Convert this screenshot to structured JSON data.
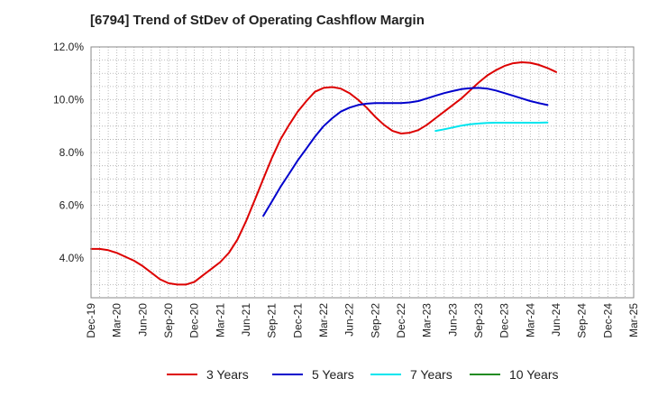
{
  "title": "[6794]  Trend of StDev of Operating Cashflow Margin",
  "chart_data": {
    "type": "line",
    "title": "[6794]  Trend of StDev of Operating Cashflow Margin",
    "xlabel": "",
    "ylabel": "",
    "ylim": [
      2.5,
      12.0
    ],
    "y_ticks": [
      4.0,
      6.0,
      8.0,
      10.0,
      12.0
    ],
    "y_tick_labels": [
      "4.0%",
      "6.0%",
      "8.0%",
      "10.0%",
      "12.0%"
    ],
    "x_tick_labels": [
      "Dec-19",
      "Mar-20",
      "Jun-20",
      "Sep-20",
      "Dec-20",
      "Mar-21",
      "Jun-21",
      "Sep-21",
      "Dec-21",
      "Mar-22",
      "Jun-22",
      "Sep-22",
      "Dec-22",
      "Mar-23",
      "Jun-23",
      "Sep-23",
      "Dec-23",
      "Mar-24",
      "Jun-24",
      "Sep-24",
      "Dec-24",
      "Mar-25"
    ],
    "grid": true,
    "legend_position": "bottom",
    "series": [
      {
        "name": "3 Years",
        "color": "#dd0000",
        "points": [
          [
            0,
            4.35
          ],
          [
            1,
            4.35
          ],
          [
            2,
            4.3
          ],
          [
            3,
            4.2
          ],
          [
            4,
            4.05
          ],
          [
            5,
            3.9
          ],
          [
            6,
            3.7
          ],
          [
            7,
            3.45
          ],
          [
            8,
            3.2
          ],
          [
            9,
            3.05
          ],
          [
            10,
            3.0
          ],
          [
            11,
            3.0
          ],
          [
            12,
            3.1
          ],
          [
            13,
            3.35
          ],
          [
            14,
            3.6
          ],
          [
            15,
            3.85
          ],
          [
            16,
            4.2
          ],
          [
            17,
            4.7
          ],
          [
            18,
            5.4
          ],
          [
            19,
            6.2
          ],
          [
            20,
            7.0
          ],
          [
            21,
            7.8
          ],
          [
            22,
            8.5
          ],
          [
            23,
            9.05
          ],
          [
            24,
            9.55
          ],
          [
            25,
            9.95
          ],
          [
            26,
            10.3
          ],
          [
            27,
            10.45
          ],
          [
            28,
            10.48
          ],
          [
            29,
            10.42
          ],
          [
            30,
            10.25
          ],
          [
            31,
            10.0
          ],
          [
            32,
            9.7
          ],
          [
            33,
            9.35
          ],
          [
            34,
            9.05
          ],
          [
            35,
            8.82
          ],
          [
            36,
            8.72
          ],
          [
            37,
            8.75
          ],
          [
            38,
            8.85
          ],
          [
            39,
            9.05
          ],
          [
            40,
            9.3
          ],
          [
            41,
            9.55
          ],
          [
            42,
            9.8
          ],
          [
            43,
            10.05
          ],
          [
            44,
            10.35
          ],
          [
            45,
            10.65
          ],
          [
            46,
            10.92
          ],
          [
            47,
            11.12
          ],
          [
            48,
            11.28
          ],
          [
            49,
            11.38
          ],
          [
            50,
            11.42
          ],
          [
            51,
            11.4
          ],
          [
            52,
            11.32
          ],
          [
            53,
            11.2
          ],
          [
            54,
            11.05
          ]
        ]
      },
      {
        "name": "5 Years",
        "color": "#0000cc",
        "points": [
          [
            20,
            5.6
          ],
          [
            21,
            6.15
          ],
          [
            22,
            6.7
          ],
          [
            23,
            7.2
          ],
          [
            24,
            7.7
          ],
          [
            25,
            8.15
          ],
          [
            26,
            8.6
          ],
          [
            27,
            9.0
          ],
          [
            28,
            9.3
          ],
          [
            29,
            9.55
          ],
          [
            30,
            9.7
          ],
          [
            31,
            9.8
          ],
          [
            32,
            9.85
          ],
          [
            33,
            9.87
          ],
          [
            34,
            9.87
          ],
          [
            35,
            9.87
          ],
          [
            36,
            9.87
          ],
          [
            37,
            9.9
          ],
          [
            38,
            9.95
          ],
          [
            39,
            10.05
          ],
          [
            40,
            10.15
          ],
          [
            41,
            10.25
          ],
          [
            42,
            10.33
          ],
          [
            43,
            10.4
          ],
          [
            44,
            10.44
          ],
          [
            45,
            10.45
          ],
          [
            46,
            10.42
          ],
          [
            47,
            10.35
          ],
          [
            48,
            10.25
          ],
          [
            49,
            10.15
          ],
          [
            50,
            10.05
          ],
          [
            51,
            9.95
          ],
          [
            52,
            9.87
          ],
          [
            53,
            9.8
          ]
        ]
      },
      {
        "name": "7 Years",
        "color": "#00e5ee",
        "points": [
          [
            40,
            8.82
          ],
          [
            41,
            8.88
          ],
          [
            42,
            8.95
          ],
          [
            43,
            9.02
          ],
          [
            44,
            9.07
          ],
          [
            45,
            9.1
          ],
          [
            46,
            9.12
          ],
          [
            47,
            9.13
          ],
          [
            48,
            9.13
          ],
          [
            49,
            9.13
          ],
          [
            50,
            9.13
          ],
          [
            51,
            9.13
          ],
          [
            52,
            9.13
          ],
          [
            53,
            9.14
          ]
        ]
      },
      {
        "name": "10 Years",
        "color": "#228b22",
        "points": []
      }
    ]
  }
}
